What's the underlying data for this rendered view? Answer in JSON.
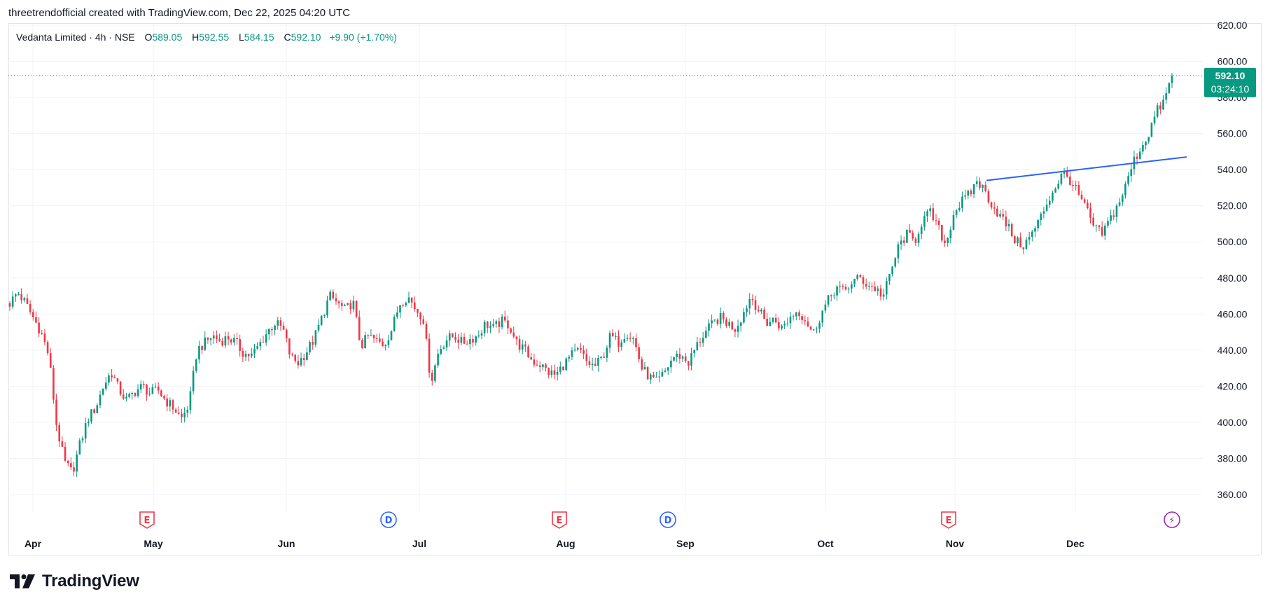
{
  "caption": "threetrendofficial created with TradingView.com, Dec 22, 2025 04:20 UTC",
  "brand": {
    "name": "TradingView",
    "icon": "tradingview-logo-icon"
  },
  "legend": {
    "symbol": "Vedanta Limited · 4h · NSE",
    "open_label": "O",
    "open": "589.05",
    "high_label": "H",
    "high": "592.55",
    "low_label": "L",
    "low": "584.15",
    "close_label": "C",
    "close": "592.10",
    "change": "+9.90 (+1.70%)"
  },
  "price_tag": {
    "price": "592.10",
    "countdown": "03:24:10"
  },
  "colors": {
    "up": "#089981",
    "down": "#F23645",
    "trendline": "#2962FF",
    "grid": "#f0f3fa",
    "earnings": "#F23645",
    "dividend": "#2962FF",
    "split": "#9C27B0"
  },
  "chart_data": {
    "type": "candlestick",
    "title": "Vedanta Limited · 4h · NSE",
    "ylim": [
      345,
      630
    ],
    "y_ticks": [
      "620.00",
      "600.00",
      "580.00",
      "560.00",
      "540.00",
      "520.00",
      "500.00",
      "480.00",
      "460.00",
      "440.00",
      "420.00",
      "400.00",
      "380.00",
      "360.00"
    ],
    "x_ticks": [
      "Apr",
      "May",
      "Jun",
      "Jul",
      "Aug",
      "Sep",
      "Oct",
      "Nov",
      "Dec"
    ],
    "last_price": 592.1,
    "events": [
      {
        "type": "earnings",
        "label": "E",
        "month": "May"
      },
      {
        "type": "dividend",
        "label": "D",
        "month": "Jun-Jul"
      },
      {
        "type": "earnings",
        "label": "E",
        "month": "Aug"
      },
      {
        "type": "dividend",
        "label": "D",
        "month": "Aug-Sep"
      },
      {
        "type": "earnings",
        "label": "E",
        "month": "Nov"
      },
      {
        "type": "split",
        "label": "⚡",
        "month": "Dec"
      }
    ],
    "trendline": {
      "from_price": 534,
      "to_price": 547
    },
    "price_path": [
      [
        "Mar",
        466
      ],
      [
        "Mar",
        472
      ],
      [
        "Mar",
        466
      ],
      [
        "Mar",
        458
      ],
      [
        "Mar",
        450
      ],
      [
        "Apr",
        437
      ],
      [
        "Apr",
        398
      ],
      [
        "Apr",
        378
      ],
      [
        "Apr",
        372
      ],
      [
        "Apr",
        388
      ],
      [
        "Apr",
        402
      ],
      [
        "Apr",
        408
      ],
      [
        "Apr",
        420
      ],
      [
        "Apr",
        428
      ],
      [
        "Apr",
        418
      ],
      [
        "Apr",
        412
      ],
      [
        "Apr",
        417
      ],
      [
        "Apr",
        420
      ],
      [
        "Apr",
        416
      ],
      [
        "Apr",
        418
      ],
      [
        "May",
        412
      ],
      [
        "May",
        408
      ],
      [
        "May",
        402
      ],
      [
        "May",
        410
      ],
      [
        "May",
        440
      ],
      [
        "May",
        444
      ],
      [
        "May",
        448
      ],
      [
        "May",
        445
      ],
      [
        "May",
        447
      ],
      [
        "May",
        444
      ],
      [
        "May",
        438
      ],
      [
        "May",
        437
      ],
      [
        "May",
        443
      ],
      [
        "May",
        450
      ],
      [
        "May",
        455
      ],
      [
        "May",
        452
      ],
      [
        "May",
        436
      ],
      [
        "May",
        433
      ],
      [
        "May",
        439
      ],
      [
        "May",
        446
      ],
      [
        "Jun",
        458
      ],
      [
        "Jun",
        470
      ],
      [
        "Jun",
        466
      ],
      [
        "Jun",
        462
      ],
      [
        "Jun",
        467
      ],
      [
        "Jun",
        442
      ],
      [
        "Jun",
        448
      ],
      [
        "Jun",
        445
      ],
      [
        "Jun",
        443
      ],
      [
        "Jun",
        452
      ],
      [
        "Jun",
        466
      ],
      [
        "Jun",
        470
      ],
      [
        "Jun",
        463
      ],
      [
        "Jun",
        458
      ],
      [
        "Jun",
        422
      ],
      [
        "Jun",
        440
      ],
      [
        "Jun",
        446
      ],
      [
        "Jun",
        448
      ],
      [
        "Jun",
        444
      ],
      [
        "Jun",
        446
      ],
      [
        "Jul",
        448
      ],
      [
        "Jul",
        455
      ],
      [
        "Jul",
        452
      ],
      [
        "Jul",
        456
      ],
      [
        "Jul",
        454
      ],
      [
        "Jul",
        444
      ],
      [
        "Jul",
        440
      ],
      [
        "Jul",
        434
      ],
      [
        "Jul",
        432
      ],
      [
        "Jul",
        428
      ],
      [
        "Jul",
        426
      ],
      [
        "Jul",
        432
      ],
      [
        "Jul",
        437
      ],
      [
        "Jul",
        440
      ],
      [
        "Jul",
        433
      ],
      [
        "Jul",
        431
      ],
      [
        "Jul",
        436
      ],
      [
        "Jul",
        448
      ],
      [
        "Jul",
        444
      ],
      [
        "Jul",
        450
      ],
      [
        "Aug",
        446
      ],
      [
        "Aug",
        430
      ],
      [
        "Aug",
        425
      ],
      [
        "Aug",
        422
      ],
      [
        "Aug",
        428
      ],
      [
        "Aug",
        436
      ],
      [
        "Aug",
        437
      ],
      [
        "Aug",
        433
      ],
      [
        "Aug",
        442
      ],
      [
        "Aug",
        449
      ],
      [
        "Aug",
        454
      ],
      [
        "Aug",
        458
      ],
      [
        "Aug",
        455
      ],
      [
        "Aug",
        452
      ],
      [
        "Aug",
        460
      ],
      [
        "Aug",
        470
      ],
      [
        "Aug",
        462
      ],
      [
        "Aug",
        455
      ],
      [
        "Aug",
        457
      ],
      [
        "Aug",
        452
      ],
      [
        "Sep",
        458
      ],
      [
        "Sep",
        462
      ],
      [
        "Sep",
        457
      ],
      [
        "Sep",
        449
      ],
      [
        "Sep",
        460
      ],
      [
        "Sep",
        468
      ],
      [
        "Sep",
        475
      ],
      [
        "Sep",
        472
      ],
      [
        "Sep",
        478
      ],
      [
        "Sep",
        480
      ],
      [
        "Sep",
        476
      ],
      [
        "Sep",
        474
      ],
      [
        "Sep",
        470
      ],
      [
        "Sep",
        484
      ],
      [
        "Sep",
        498
      ],
      [
        "Sep",
        504
      ],
      [
        "Sep",
        500
      ],
      [
        "Sep",
        512
      ],
      [
        "Sep",
        516
      ],
      [
        "Sep",
        508
      ],
      [
        "Oct",
        498
      ],
      [
        "Oct",
        516
      ],
      [
        "Oct",
        522
      ],
      [
        "Oct",
        526
      ],
      [
        "Oct",
        534
      ],
      [
        "Oct",
        528
      ],
      [
        "Oct",
        520
      ],
      [
        "Oct",
        514
      ],
      [
        "Oct",
        508
      ],
      [
        "Oct",
        500
      ],
      [
        "Oct",
        498
      ],
      [
        "Oct",
        504
      ],
      [
        "Oct",
        512
      ],
      [
        "Oct",
        522
      ],
      [
        "Oct",
        530
      ],
      [
        "Oct",
        538
      ],
      [
        "Oct",
        534
      ],
      [
        "Oct",
        526
      ],
      [
        "Oct",
        518
      ],
      [
        "Oct",
        508
      ],
      [
        "Nov",
        504
      ],
      [
        "Nov",
        512
      ],
      [
        "Nov",
        520
      ],
      [
        "Nov",
        530
      ],
      [
        "Nov",
        544
      ],
      [
        "Nov",
        552
      ],
      [
        "Nov",
        560
      ],
      [
        "Nov",
        572
      ],
      [
        "Nov",
        578
      ],
      [
        "Nov",
        592
      ]
    ]
  }
}
